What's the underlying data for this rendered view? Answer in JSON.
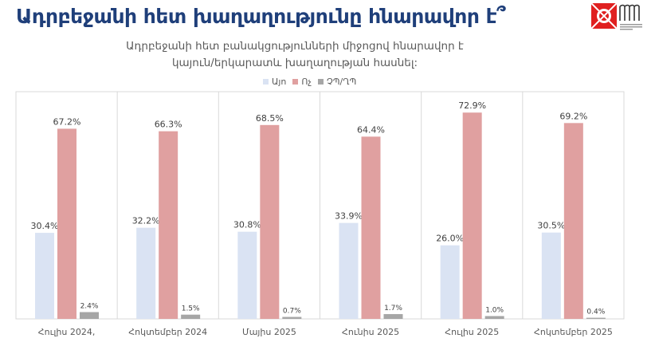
{
  "chart_data": {
    "type": "bar",
    "title": "Ադրբեջանի հետ խաղաղությունը հնարավոր է՞",
    "subtitle_lines": [
      "Ադրբեջանի հետ բանակցությունների միջոցով հնարավոր է",
      "կայուն/երկարատև խաղաղության հասնել:"
    ],
    "categories": [
      "Հուլիս 2024,",
      "Հոկտեմբեր 2024",
      "Մայիս 2025",
      "Հունիս 2025",
      "Հուլիս 2025",
      "Հոկտեմբեր 2025"
    ],
    "series": [
      {
        "name": "Այո",
        "color": "#dae3f3",
        "values": [
          30.4,
          32.2,
          30.8,
          33.9,
          26.0,
          30.5
        ]
      },
      {
        "name": "Ոչ",
        "color": "#e0a0a0",
        "values": [
          67.2,
          66.3,
          68.5,
          64.4,
          72.9,
          69.2
        ]
      },
      {
        "name": "ՉՊ/ՂՊ",
        "color": "#a6a6a6",
        "values": [
          2.4,
          1.5,
          0.7,
          1.7,
          1.0,
          0.4
        ]
      }
    ],
    "value_format": "percent_1dp",
    "ylim": [
      0,
      80
    ],
    "legend": "top-center",
    "grid": false
  }
}
